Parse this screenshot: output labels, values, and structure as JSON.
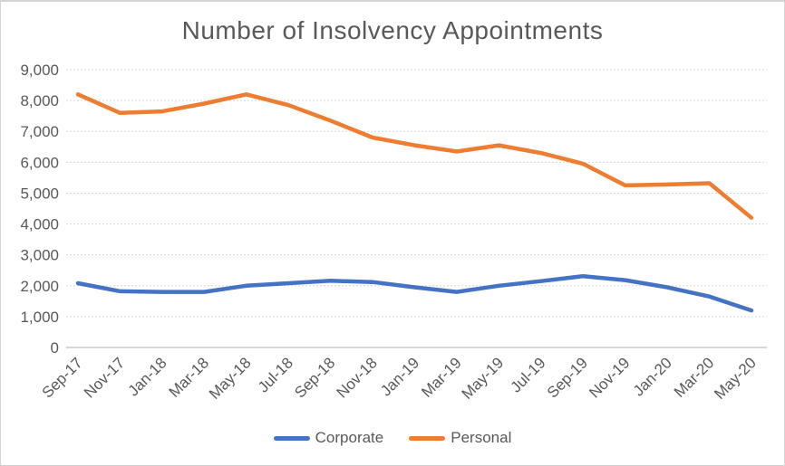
{
  "chart_data": {
    "type": "line",
    "title": "Number of Insolvency Appointments",
    "categories": [
      "Sep-17",
      "Nov-17",
      "Jan-18",
      "Mar-18",
      "May-18",
      "Jul-18",
      "Sep-18",
      "Nov-18",
      "Jan-19",
      "Mar-19",
      "May-19",
      "Jul-19",
      "Sep-19",
      "Nov-19",
      "Jan-20",
      "Mar-20",
      "May-20"
    ],
    "series": [
      {
        "name": "Corporate",
        "color": "#4472C4",
        "values": [
          2080,
          1820,
          1800,
          1800,
          2000,
          2080,
          2160,
          2120,
          1950,
          1800,
          2000,
          2150,
          2310,
          2180,
          1950,
          1650,
          1200
        ]
      },
      {
        "name": "Personal",
        "color": "#ED7D31",
        "values": [
          8200,
          7600,
          7650,
          7900,
          8200,
          7850,
          7350,
          6800,
          6550,
          6350,
          6550,
          6300,
          5950,
          5250,
          5280,
          5320,
          4200
        ]
      }
    ],
    "xlabel": "",
    "ylabel": "",
    "ylim": [
      0,
      9000
    ],
    "y_ticks": [
      0,
      1000,
      2000,
      3000,
      4000,
      5000,
      6000,
      7000,
      8000,
      9000
    ],
    "y_tick_labels": [
      "0",
      "1,000",
      "2,000",
      "3,000",
      "4,000",
      "5,000",
      "6,000",
      "7,000",
      "8,000",
      "9,000"
    ],
    "grid": true,
    "legend_position": "bottom",
    "x_label_rotation_deg": 45
  },
  "style": {
    "text_color": "#595959",
    "gridline_color": "#D9D9D9",
    "axis_line_color": "#BFBFBF",
    "background_color": "#FFFFFF",
    "border_color": "#D4D4D4"
  }
}
